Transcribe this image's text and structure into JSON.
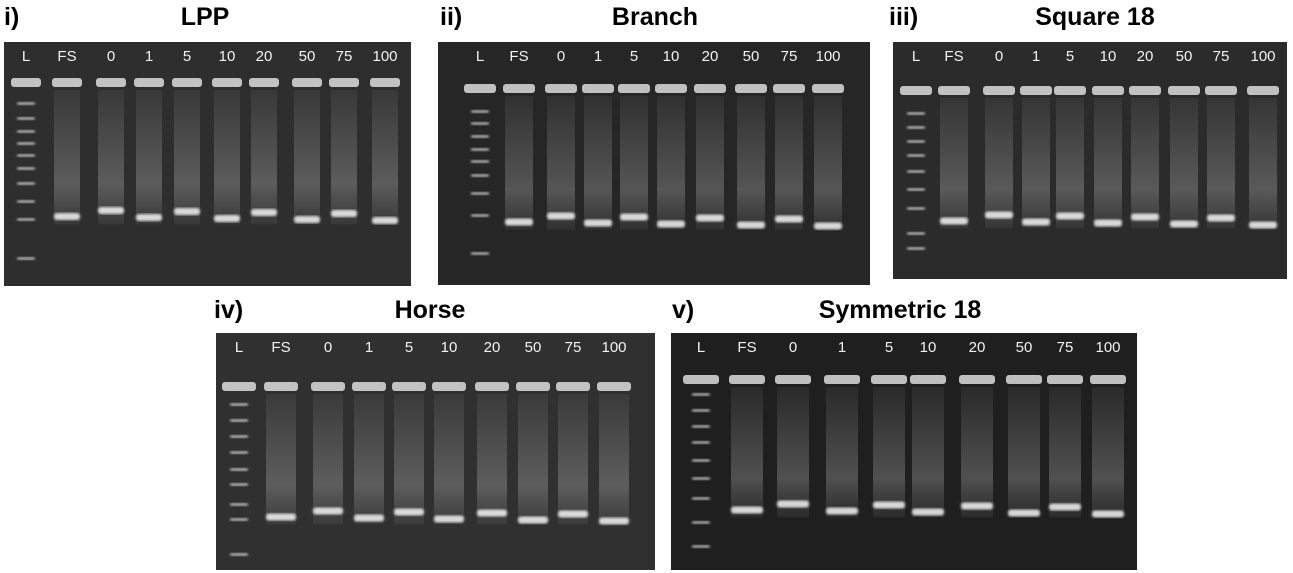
{
  "figure": {
    "panels": [
      {
        "id": "p1",
        "numeral": "i)",
        "title": "LPP",
        "lanes": [
          "L",
          "FS",
          "0",
          "1",
          "5",
          "10",
          "20",
          "50",
          "75",
          "100"
        ]
      },
      {
        "id": "p2",
        "numeral": "ii)",
        "title": "Branch",
        "lanes": [
          "L",
          "FS",
          "0",
          "1",
          "5",
          "10",
          "20",
          "50",
          "75",
          "100"
        ]
      },
      {
        "id": "p3",
        "numeral": "iii)",
        "title": "Square 18",
        "lanes": [
          "L",
          "FS",
          "0",
          "1",
          "5",
          "10",
          "20",
          "50",
          "75",
          "100"
        ]
      },
      {
        "id": "p4",
        "numeral": "iv)",
        "title": "Horse",
        "lanes": [
          "L",
          "FS",
          "0",
          "1",
          "5",
          "10",
          "20",
          "50",
          "75",
          "100"
        ]
      },
      {
        "id": "p5",
        "numeral": "v)",
        "title": "Symmetric 18",
        "lanes": [
          "L",
          "FS",
          "0",
          "1",
          "5",
          "10",
          "20",
          "50",
          "75",
          "100"
        ]
      }
    ]
  }
}
